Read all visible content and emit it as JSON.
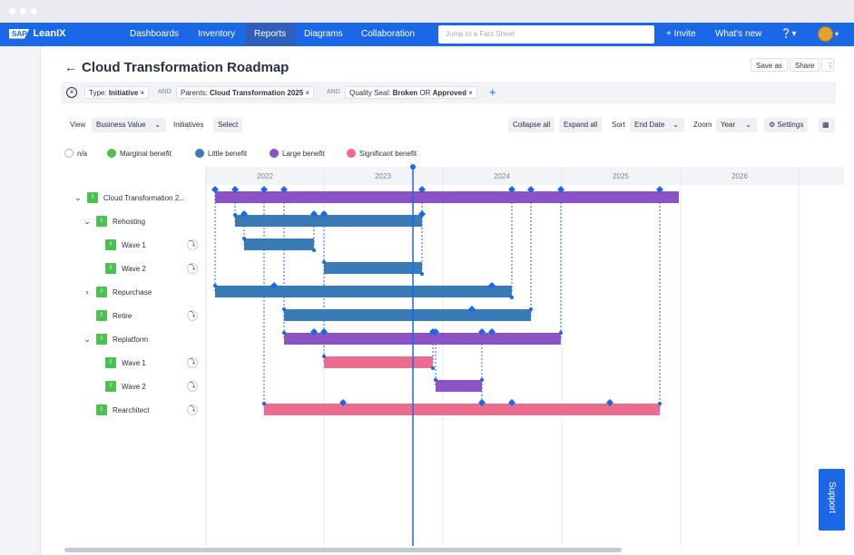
{
  "colors": {
    "primary": "#1a68e8",
    "marginal": "#4cc052",
    "little": "#3a7ab5",
    "large": "#8c53c7",
    "significant": "#ea6d8f",
    "milestone": "#1a68e8",
    "today": "#1a68e8"
  },
  "nav": {
    "logo_sap": "SAP",
    "logo_text": "LeanIX",
    "items": [
      "Dashboards",
      "Inventory",
      "Reports",
      "Diagrams",
      "Collaboration"
    ],
    "active": "Reports",
    "search_placeholder": "Jump to a Fact Sheet",
    "invite": "+ Invite",
    "whats_new": "What's new",
    "help_icon": "question-icon"
  },
  "page": {
    "title": "Cloud Transformation Roadmap",
    "save_as": "Save as",
    "share": "Share",
    "more_icon": "more-vertical-icon"
  },
  "filters": {
    "and": "AND",
    "chips": [
      {
        "key": "Type:",
        "value": "Initiative"
      },
      {
        "key": "Parents:",
        "value": "Cloud Transformation 2025"
      },
      {
        "key": "Quality Seal:",
        "value": "Broken",
        "or": "OR",
        "value2": "Approved"
      }
    ]
  },
  "toolbar": {
    "view_label": "View",
    "view_value": "Business Value",
    "initiatives_label": "Initiatives",
    "initiatives_value": "Select",
    "collapse_all": "Collapse all",
    "expand_all": "Expand all",
    "sort_label": "Sort",
    "sort_value": "End Date",
    "zoom_label": "Zoom",
    "zoom_value": "Year",
    "settings": "Settings"
  },
  "legend": [
    {
      "label": "n/a",
      "key": "na"
    },
    {
      "label": "Marginal benefit",
      "key": "marginal"
    },
    {
      "label": "Little benefit",
      "key": "little"
    },
    {
      "label": "Large benefit",
      "key": "large"
    },
    {
      "label": "Significant benefit",
      "key": "significant"
    }
  ],
  "timeline": {
    "years": [
      "2022",
      "2023",
      "2024",
      "2025",
      "2026"
    ]
  },
  "tree": [
    {
      "label": "Cloud Transformation 2...",
      "badge": "I"
    },
    {
      "label": "Rehosting",
      "badge": "I"
    },
    {
      "label": "Wave 1",
      "badge": "I"
    },
    {
      "label": "Wave 2",
      "badge": "I"
    },
    {
      "label": "Repurchase",
      "badge": "I"
    },
    {
      "label": "Retire",
      "badge": "I"
    },
    {
      "label": "Replatform",
      "badge": "I"
    },
    {
      "label": "Wave 1",
      "badge": "I"
    },
    {
      "label": "Wave 2",
      "badge": "I"
    },
    {
      "label": "Rearchitect",
      "badge": "I"
    }
  ],
  "support": "Support"
}
